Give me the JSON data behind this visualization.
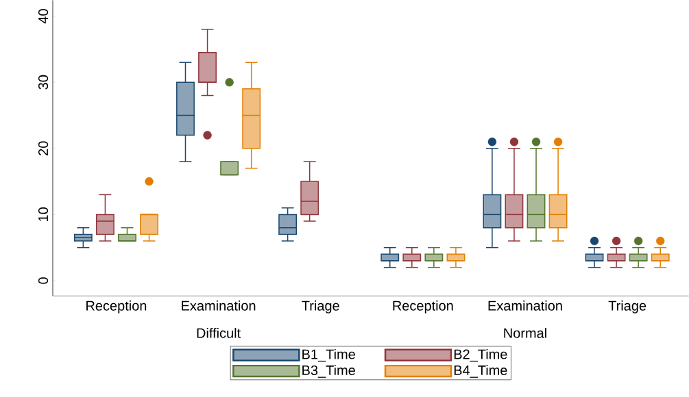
{
  "chart_data": {
    "type": "box",
    "categories": [
      "Reception",
      "Examination",
      "Triage",
      "Reception",
      "Examination",
      "Triage"
    ],
    "annotations": [
      "Difficult",
      "Normal"
    ],
    "ylim": [
      -2.3,
      42.4
    ],
    "yticks": [
      0,
      10,
      20,
      30,
      40
    ],
    "legend": "bottom",
    "series": [
      {
        "name": "B1_Time",
        "color": "#1a476f",
        "boxes": [
          {
            "low": 5,
            "q1": 6,
            "median": 6.5,
            "q3": 7,
            "high": 8
          },
          {
            "low": 18,
            "q1": 22,
            "median": 25,
            "q3": 30,
            "high": 33
          },
          {
            "low": 6,
            "q1": 7,
            "median": 8,
            "q3": 10,
            "high": 11
          },
          {
            "low": 2,
            "q1": 3,
            "median": 3,
            "q3": 4,
            "high": 5
          },
          {
            "low": 5,
            "q1": 8,
            "median": 10,
            "q3": 13,
            "high": 20,
            "outliers": [
              21
            ]
          },
          {
            "low": 2,
            "q1": 3,
            "median": 3,
            "q3": 4,
            "high": 5,
            "outliers": [
              6
            ]
          }
        ]
      },
      {
        "name": "B2_Time",
        "color": "#90353b",
        "boxes": [
          {
            "low": 6,
            "q1": 7,
            "median": 9,
            "q3": 10,
            "high": 13
          },
          {
            "low": 28,
            "q1": 30,
            "median": 30,
            "q3": 34.5,
            "high": 38,
            "outliers": [
              22
            ]
          },
          {
            "low": 9,
            "q1": 10,
            "median": 12,
            "q3": 15,
            "high": 18
          },
          {
            "low": 2,
            "q1": 3,
            "median": 3,
            "q3": 4,
            "high": 5
          },
          {
            "low": 6,
            "q1": 8,
            "median": 10,
            "q3": 13,
            "high": 20,
            "outliers": [
              21
            ]
          },
          {
            "low": 2,
            "q1": 3,
            "median": 3,
            "q3": 4,
            "high": 5,
            "outliers": [
              6
            ]
          }
        ]
      },
      {
        "name": "B3_Time",
        "color": "#55752f",
        "boxes": [
          {
            "low": 6,
            "q1": 6,
            "median": 6,
            "q3": 7,
            "high": 8
          },
          {
            "low": 16,
            "q1": 16,
            "median": 16,
            "q3": 18,
            "high": 18,
            "outliers": [
              30
            ]
          },
          null,
          {
            "low": 2,
            "q1": 3,
            "median": 3,
            "q3": 4,
            "high": 5
          },
          {
            "low": 6,
            "q1": 8,
            "median": 10,
            "q3": 13,
            "high": 20,
            "outliers": [
              21
            ]
          },
          {
            "low": 2,
            "q1": 3,
            "median": 3,
            "q3": 4,
            "high": 5,
            "outliers": [
              6
            ]
          }
        ]
      },
      {
        "name": "B4_Time",
        "color": "#e37e00",
        "boxes": [
          {
            "low": 6,
            "q1": 7,
            "median": 10,
            "q3": 10,
            "high": 10,
            "outliers": [
              15
            ]
          },
          {
            "low": 17,
            "q1": 20,
            "median": 25,
            "q3": 29,
            "high": 33
          },
          null,
          {
            "low": 2,
            "q1": 3,
            "median": 3,
            "q3": 4,
            "high": 5
          },
          {
            "low": 6,
            "q1": 8,
            "median": 10,
            "q3": 13,
            "high": 20,
            "outliers": [
              21
            ]
          },
          {
            "low": 2,
            "q1": 3,
            "median": 3,
            "q3": 4,
            "high": 5,
            "outliers": [
              6
            ]
          }
        ]
      }
    ]
  }
}
